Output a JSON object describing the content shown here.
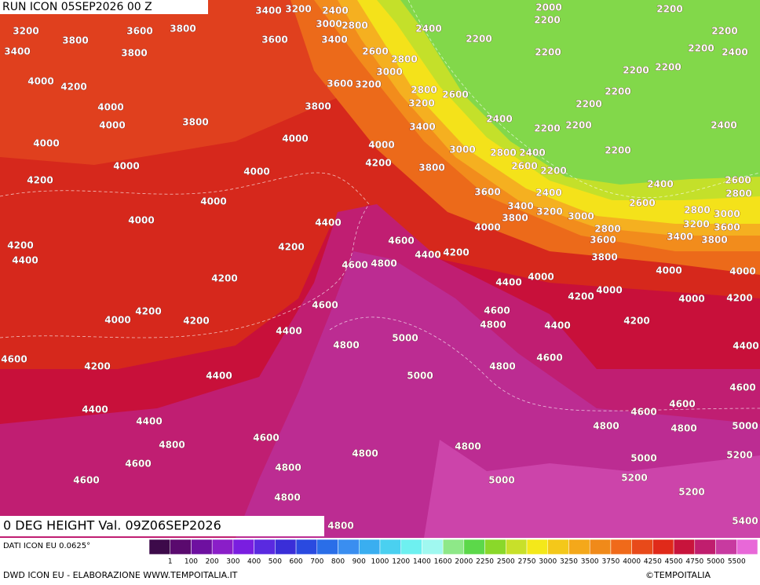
{
  "header": {
    "run": "RUN ICON 05SEP2026 00 Z"
  },
  "map": {
    "contour_labels": [
      3400,
      3200,
      2400,
      2000,
      2200,
      3200,
      3600,
      3800,
      3000,
      2800,
      2400,
      2200,
      2200,
      3400,
      3800,
      3800,
      3600,
      3400,
      2200,
      2200,
      2400,
      2600,
      2800,
      3000,
      2200,
      2200,
      2200,
      4000,
      4200,
      3600,
      3200,
      2800,
      2600,
      2200,
      4000,
      3800,
      3200,
      2200,
      4000,
      3800,
      2400,
      2200,
      2200,
      3400,
      2400,
      4000,
      4000,
      4000,
      3000,
      2800,
      2400,
      2200,
      4000,
      4000,
      4200,
      3800,
      2600,
      2200,
      4200,
      3600,
      2400,
      2400,
      2600,
      2800,
      4000,
      3400,
      3200,
      3000,
      2600,
      2800,
      3000,
      4000,
      4400,
      3800,
      4000,
      2800,
      3200,
      3600,
      4200,
      4200,
      4600,
      3600,
      3400,
      3800,
      4400,
      4400,
      4200,
      4600,
      4800,
      3800,
      4000,
      4000,
      4200,
      4400,
      4000,
      4600,
      4200,
      4200,
      4000,
      4000,
      4200,
      4000,
      4200,
      4600,
      4800,
      4200,
      4400,
      4400,
      4800,
      5000,
      4400,
      4600,
      4600,
      4800,
      4200,
      4400,
      5000,
      4600,
      4400,
      4600,
      4600,
      4400,
      4800,
      4800,
      5000,
      4600,
      4800,
      4800,
      4800,
      5000,
      5200,
      4600,
      4800,
      5000,
      5200,
      4600,
      5200,
      4800,
      4800,
      5400
    ]
  },
  "footer": {
    "title": "0 DEG HEIGHT Val. 09Z06SEP2026",
    "data_source": "DATI ICON EU 0.0625°",
    "credit": "DWD ICON EU - ELABORAZIONE WWW.TEMPOITALIA.IT",
    "copyright": "©TEMPOITALIA"
  },
  "legend": {
    "levels": [
      1,
      100,
      200,
      300,
      400,
      500,
      600,
      700,
      800,
      900,
      1000,
      1200,
      1400,
      1600,
      2000,
      2250,
      2500,
      2750,
      3000,
      3250,
      3500,
      3750,
      4000,
      4250,
      4500,
      4750,
      5000,
      5500
    ],
    "colors": [
      "#3d0a4a",
      "#5a0a6e",
      "#6e10a0",
      "#8a1ec8",
      "#7a1ee0",
      "#5a2ae0",
      "#3a2ed8",
      "#2a4ae0",
      "#2a6ee8",
      "#3a8ef0",
      "#3aaef0",
      "#4ad0f0",
      "#6ef0f0",
      "#a0f8f0",
      "#8ee888",
      "#5cd84a",
      "#8ad82a",
      "#c8e02a",
      "#f4e81a",
      "#f4c81a",
      "#f4a81a",
      "#f08a1a",
      "#f06a1a",
      "#e84a1a",
      "#e02a1a",
      "#c8143c",
      "#c01e6e",
      "#c83aa0",
      "#e868d8"
    ]
  }
}
